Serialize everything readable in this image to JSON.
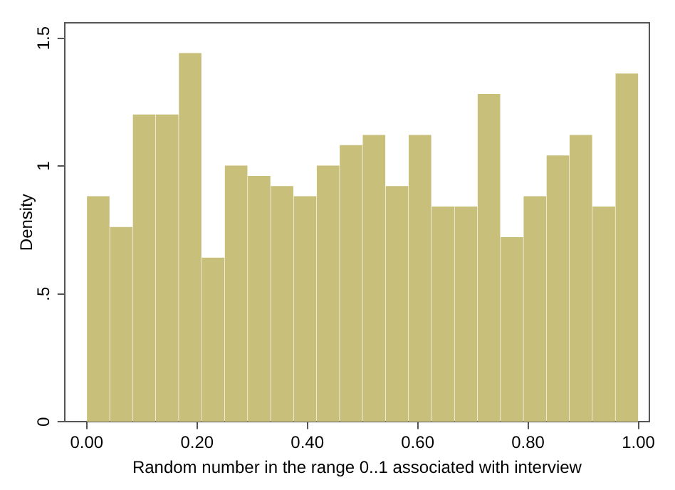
{
  "chart_data": {
    "type": "histogram",
    "xlabel": "Random number in the range 0..1 associated with interview",
    "ylabel": "Density",
    "bins": [
      0,
      0.0417,
      0.0833,
      0.125,
      0.1667,
      0.2083,
      0.25,
      0.2917,
      0.3333,
      0.375,
      0.4167,
      0.4583,
      0.5,
      0.5417,
      0.5833,
      0.625,
      0.6667,
      0.7083,
      0.75,
      0.7917,
      0.8333,
      0.875,
      0.9167,
      0.9583,
      1
    ],
    "values": [
      0.88,
      0.76,
      1.2,
      1.2,
      1.44,
      0.64,
      1.0,
      0.96,
      0.92,
      0.88,
      1.0,
      1.08,
      1.12,
      0.92,
      1.12,
      0.84,
      0.84,
      1.28,
      0.72,
      0.88,
      1.04,
      1.12,
      0.84,
      1.36
    ],
    "color": "#c8bf7a",
    "xlim": [
      -0.04,
      1.02
    ],
    "xticks": [
      {
        "value": 0,
        "label": "0.00"
      },
      {
        "value": 0.2,
        "label": "0.20"
      },
      {
        "value": 0.4,
        "label": "0.40"
      },
      {
        "value": 0.6,
        "label": "0.60"
      },
      {
        "value": 0.8,
        "label": "0.80"
      },
      {
        "value": 1,
        "label": "1.00"
      }
    ],
    "ylim": [
      0,
      1.56
    ],
    "yticks": [
      0,
      {
        "value": 0.5,
        "label": ".5"
      },
      1,
      1.5
    ]
  }
}
